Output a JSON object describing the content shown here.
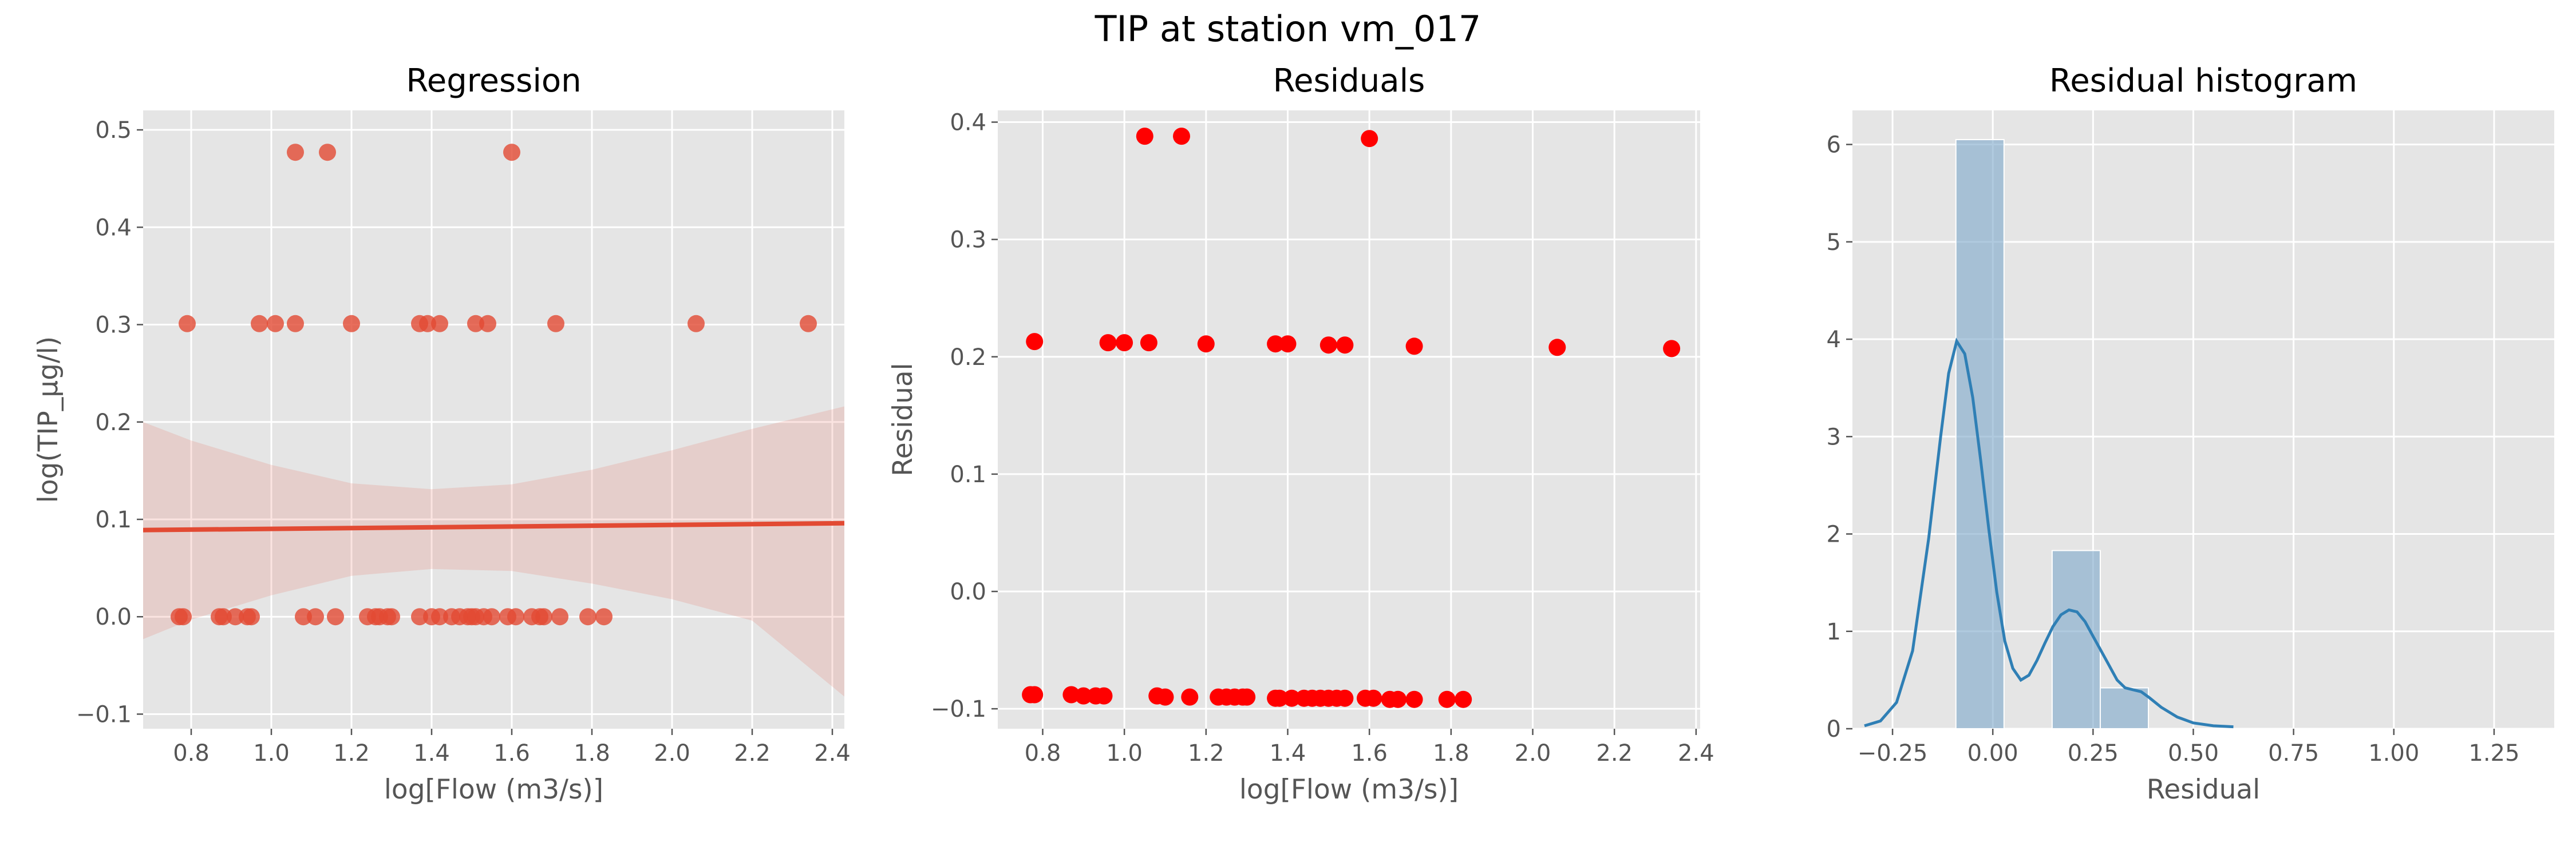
{
  "suptitle": "TIP at station vm_017",
  "colors": {
    "panel_bg": "#e5e5e5",
    "grid": "#ffffff",
    "tick_text": "#555555",
    "label_text": "#555555",
    "title_text": "#000000",
    "scatter": "#e24a33",
    "ci_band": "#e24a33",
    "residual_points": "#ff0000",
    "hist_bar": "#7ba7c9",
    "kde_line": "#2f7fb5"
  },
  "chart_data": [
    {
      "type": "scatter",
      "title": "Regression",
      "xlabel": "log[Flow (m3/s)]",
      "ylabel": "log(TIP_µg/l)",
      "xlim": [
        0.68,
        2.43
      ],
      "ylim": [
        -0.115,
        0.52
      ],
      "xticks": [
        0.8,
        1.0,
        1.2,
        1.4,
        1.6,
        1.8,
        2.0,
        2.2,
        2.4
      ],
      "xtick_labels": [
        "0.8",
        "1.0",
        "1.2",
        "1.4",
        "1.6",
        "1.8",
        "2.0",
        "2.2",
        "2.4"
      ],
      "yticks": [
        -0.1,
        0.0,
        0.1,
        0.2,
        0.3,
        0.4,
        0.5
      ],
      "ytick_labels": [
        "−0.1",
        "0.0",
        "0.1",
        "0.2",
        "0.3",
        "0.4",
        "0.5"
      ],
      "grid": true,
      "points": [
        [
          1.06,
          0.477
        ],
        [
          1.14,
          0.477
        ],
        [
          1.6,
          0.477
        ],
        [
          0.79,
          0.301
        ],
        [
          0.97,
          0.301
        ],
        [
          1.01,
          0.301
        ],
        [
          1.06,
          0.301
        ],
        [
          1.2,
          0.301
        ],
        [
          1.37,
          0.301
        ],
        [
          1.39,
          0.301
        ],
        [
          1.42,
          0.301
        ],
        [
          1.51,
          0.301
        ],
        [
          1.54,
          0.301
        ],
        [
          1.71,
          0.301
        ],
        [
          2.06,
          0.301
        ],
        [
          2.34,
          0.301
        ],
        [
          0.77,
          0.0
        ],
        [
          0.78,
          0.0
        ],
        [
          0.87,
          0.0
        ],
        [
          0.88,
          0.0
        ],
        [
          0.91,
          0.0
        ],
        [
          0.94,
          0.0
        ],
        [
          0.95,
          0.0
        ],
        [
          1.08,
          0.0
        ],
        [
          1.11,
          0.0
        ],
        [
          1.16,
          0.0
        ],
        [
          1.24,
          0.0
        ],
        [
          1.26,
          0.0
        ],
        [
          1.27,
          0.0
        ],
        [
          1.29,
          0.0
        ],
        [
          1.3,
          0.0
        ],
        [
          1.37,
          0.0
        ],
        [
          1.4,
          0.0
        ],
        [
          1.42,
          0.0
        ],
        [
          1.45,
          0.0
        ],
        [
          1.47,
          0.0
        ],
        [
          1.49,
          0.0
        ],
        [
          1.5,
          0.0
        ],
        [
          1.51,
          0.0
        ],
        [
          1.53,
          0.0
        ],
        [
          1.55,
          0.0
        ],
        [
          1.59,
          0.0
        ],
        [
          1.61,
          0.0
        ],
        [
          1.65,
          0.0
        ],
        [
          1.67,
          0.0
        ],
        [
          1.68,
          0.0
        ],
        [
          1.72,
          0.0
        ],
        [
          1.79,
          0.0
        ],
        [
          1.83,
          0.0
        ]
      ],
      "regression_line": {
        "x": [
          0.68,
          2.43
        ],
        "y": [
          0.089,
          0.096
        ]
      },
      "ci_band": {
        "x": [
          0.68,
          0.8,
          1.0,
          1.2,
          1.4,
          1.6,
          1.8,
          2.0,
          2.2,
          2.43
        ],
        "upper": [
          0.2,
          0.181,
          0.156,
          0.137,
          0.131,
          0.136,
          0.151,
          0.171,
          0.193,
          0.216
        ],
        "lower": [
          -0.023,
          -0.003,
          0.022,
          0.042,
          0.049,
          0.047,
          0.034,
          0.018,
          -0.004,
          -0.082
        ]
      }
    },
    {
      "type": "scatter",
      "title": "Residuals",
      "xlabel": "log[Flow (m3/s)]",
      "ylabel": "Residual",
      "xlim": [
        0.69,
        2.41
      ],
      "ylim": [
        -0.117,
        0.41
      ],
      "xticks": [
        0.8,
        1.0,
        1.2,
        1.4,
        1.6,
        1.8,
        2.0,
        2.2,
        2.4
      ],
      "xtick_labels": [
        "0.8",
        "1.0",
        "1.2",
        "1.4",
        "1.6",
        "1.8",
        "2.0",
        "2.2",
        "2.4"
      ],
      "yticks": [
        -0.1,
        0.0,
        0.1,
        0.2,
        0.3,
        0.4
      ],
      "ytick_labels": [
        "−0.1",
        "0.0",
        "0.1",
        "0.2",
        "0.3",
        "0.4"
      ],
      "grid": true,
      "points": [
        [
          1.05,
          0.388
        ],
        [
          1.14,
          0.388
        ],
        [
          1.6,
          0.386
        ],
        [
          0.78,
          0.213
        ],
        [
          0.96,
          0.212
        ],
        [
          1.0,
          0.212
        ],
        [
          1.06,
          0.212
        ],
        [
          1.2,
          0.211
        ],
        [
          1.37,
          0.211
        ],
        [
          1.4,
          0.211
        ],
        [
          1.5,
          0.21
        ],
        [
          1.54,
          0.21
        ],
        [
          1.71,
          0.209
        ],
        [
          2.06,
          0.208
        ],
        [
          2.34,
          0.207
        ],
        [
          0.77,
          -0.088
        ],
        [
          0.78,
          -0.088
        ],
        [
          0.87,
          -0.088
        ],
        [
          0.9,
          -0.089
        ],
        [
          0.93,
          -0.089
        ],
        [
          0.95,
          -0.089
        ],
        [
          1.08,
          -0.089
        ],
        [
          1.1,
          -0.09
        ],
        [
          1.16,
          -0.09
        ],
        [
          1.23,
          -0.09
        ],
        [
          1.25,
          -0.09
        ],
        [
          1.27,
          -0.09
        ],
        [
          1.29,
          -0.09
        ],
        [
          1.3,
          -0.09
        ],
        [
          1.37,
          -0.091
        ],
        [
          1.38,
          -0.091
        ],
        [
          1.41,
          -0.091
        ],
        [
          1.44,
          -0.091
        ],
        [
          1.46,
          -0.091
        ],
        [
          1.48,
          -0.091
        ],
        [
          1.5,
          -0.091
        ],
        [
          1.52,
          -0.091
        ],
        [
          1.54,
          -0.091
        ],
        [
          1.59,
          -0.091
        ],
        [
          1.61,
          -0.091
        ],
        [
          1.65,
          -0.092
        ],
        [
          1.67,
          -0.092
        ],
        [
          1.71,
          -0.092
        ],
        [
          1.79,
          -0.092
        ],
        [
          1.83,
          -0.092
        ]
      ]
    },
    {
      "type": "bar",
      "title": "Residual histogram",
      "xlabel": "Residual",
      "ylabel": "",
      "xlim": [
        -0.35,
        1.4
      ],
      "ylim": [
        0,
        6.35
      ],
      "xticks": [
        -0.25,
        0.0,
        0.25,
        0.5,
        0.75,
        1.0,
        1.25
      ],
      "xtick_labels": [
        "−0.25",
        "0.00",
        "0.25",
        "0.50",
        "0.75",
        "1.00",
        "1.25"
      ],
      "yticks": [
        0,
        1,
        2,
        3,
        4,
        5,
        6
      ],
      "ytick_labels": [
        "0",
        "1",
        "2",
        "3",
        "4",
        "5",
        "6"
      ],
      "grid": true,
      "bins": [
        {
          "x0": -0.092,
          "x1": 0.028,
          "value": 6.05
        },
        {
          "x0": 0.028,
          "x1": 0.148,
          "value": 0.0
        },
        {
          "x0": 0.148,
          "x1": 0.268,
          "value": 1.83
        },
        {
          "x0": 0.268,
          "x1": 0.388,
          "value": 0.42
        }
      ],
      "kde": {
        "x": [
          -0.32,
          -0.28,
          -0.24,
          -0.2,
          -0.16,
          -0.13,
          -0.11,
          -0.09,
          -0.07,
          -0.05,
          -0.03,
          -0.01,
          0.01,
          0.03,
          0.05,
          0.07,
          0.09,
          0.11,
          0.13,
          0.15,
          0.17,
          0.19,
          0.21,
          0.23,
          0.25,
          0.27,
          0.29,
          0.31,
          0.33,
          0.35,
          0.37,
          0.39,
          0.42,
          0.46,
          0.5,
          0.55,
          0.6
        ],
        "y": [
          0.03,
          0.08,
          0.27,
          0.8,
          1.95,
          3.0,
          3.65,
          3.98,
          3.85,
          3.4,
          2.75,
          2.05,
          1.4,
          0.9,
          0.62,
          0.5,
          0.55,
          0.7,
          0.88,
          1.05,
          1.17,
          1.22,
          1.2,
          1.1,
          0.95,
          0.8,
          0.65,
          0.5,
          0.42,
          0.4,
          0.38,
          0.32,
          0.22,
          0.12,
          0.06,
          0.03,
          0.02
        ]
      }
    }
  ]
}
